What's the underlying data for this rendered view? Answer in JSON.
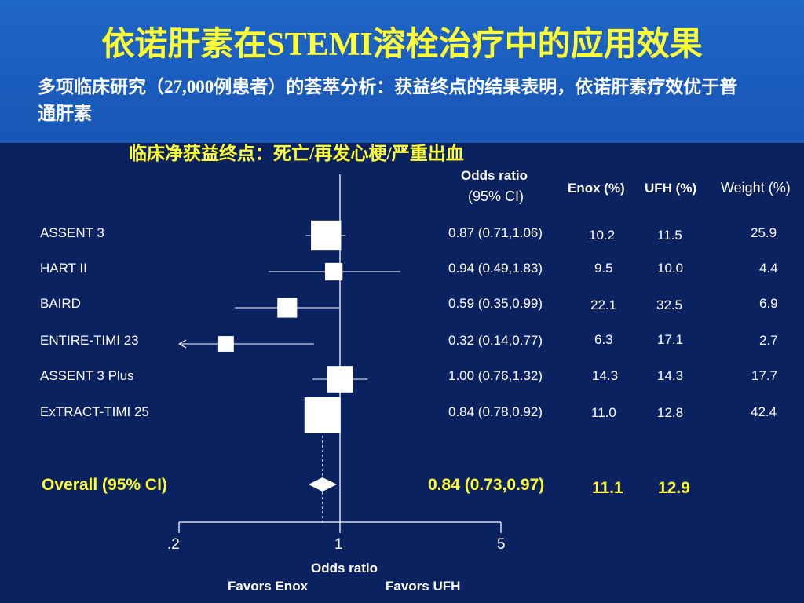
{
  "title": "依诺肝素在STEMI溶栓治疗中的应用效果",
  "intro": "多项临床研究（27,000例患者）的荟萃分析：获益终点的结果表明，依诺肝素疗效优于普通肝素",
  "subheading": "临床净获益终点：死亡/再发心梗/严重出血",
  "columns": {
    "or_title": "Odds ratio",
    "or_ci": "(95% CI)",
    "enox": "Enox (%)",
    "ufh": "UFH (%)",
    "weight": "Weight (%)"
  },
  "chart_data": {
    "type": "forest",
    "x_scale": "log",
    "xlim": [
      0.2,
      5
    ],
    "x_ticks": [
      ".2",
      "1",
      "5"
    ],
    "x_tick_values": [
      0.2,
      1,
      5
    ],
    "reference_line": 1,
    "xlabel": "Odds ratio",
    "favors_left": "Favors Enox",
    "favors_right": "Favors UFH",
    "studies": [
      {
        "name": "ASSENT 3",
        "or": 0.87,
        "ci": [
          0.71,
          1.06
        ],
        "or_text": "0.87 (0.71,1.06)",
        "enox": "10.2",
        "ufh": "11.5",
        "weight": "25.9"
      },
      {
        "name": "HART II",
        "or": 0.94,
        "ci": [
          0.49,
          1.83
        ],
        "or_text": "0.94 (0.49,1.83)",
        "enox": "9.5",
        "ufh": "10.0",
        "weight": "4.4"
      },
      {
        "name": "BAIRD",
        "or": 0.59,
        "ci": [
          0.35,
          0.99
        ],
        "or_text": "0.59 (0.35,0.99)",
        "enox": "22.1",
        "ufh": "32.5",
        "weight": "6.9"
      },
      {
        "name": "ENTIRE-TIMI 23",
        "or": 0.32,
        "ci": [
          0.14,
          0.77
        ],
        "or_text": "0.32 (0.14,0.77)",
        "enox": "6.3",
        "ufh": "17.1",
        "weight": "2.7"
      },
      {
        "name": "ASSENT 3 Plus",
        "or": 1.0,
        "ci": [
          0.76,
          1.32
        ],
        "or_text": "1.00 (0.76,1.32)",
        "enox": "14.3",
        "ufh": "14.3",
        "weight": "17.7"
      },
      {
        "name": "ExTRACT-TIMI 25",
        "or": 0.84,
        "ci": [
          0.78,
          0.92
        ],
        "or_text": "0.84 (0.78,0.92)",
        "enox": "11.0",
        "ufh": "12.8",
        "weight": "42.4"
      }
    ],
    "overall": {
      "label": "Overall (95% CI)",
      "or": 0.84,
      "ci": [
        0.73,
        0.97
      ],
      "or_text": "0.84 (0.73,0.97)",
      "enox": "11.1",
      "ufh": "12.9"
    }
  }
}
